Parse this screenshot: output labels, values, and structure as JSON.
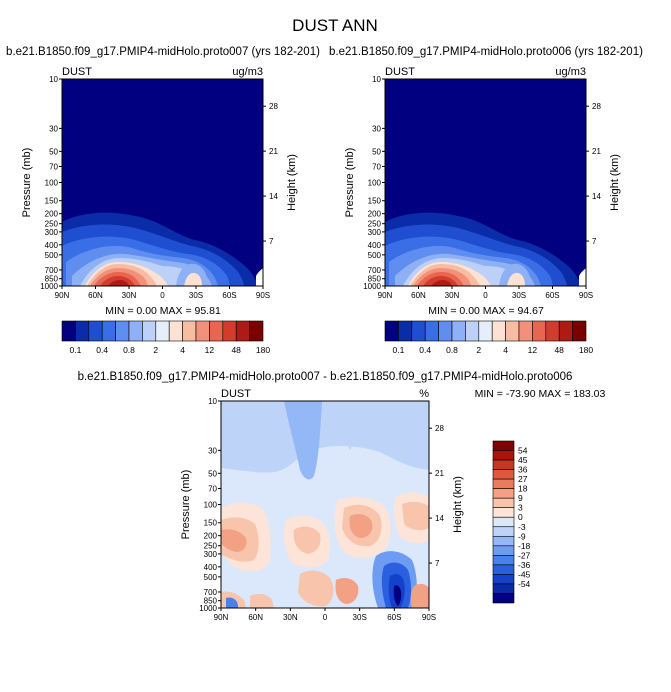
{
  "title": "DUST ANN",
  "colors": {
    "dust_scale": [
      "#000080",
      "#0a2ca8",
      "#1f4fd0",
      "#3a6ee6",
      "#5f8df0",
      "#8eb0f5",
      "#bcd0f8",
      "#e6eefc",
      "#fde2d4",
      "#f8bca2",
      "#f2917a",
      "#e8654f",
      "#d43b2c",
      "#b01a14",
      "#7a0000"
    ],
    "diff_scale": [
      "#000080",
      "#0a2aa5",
      "#1342c8",
      "#2a60e0",
      "#4a80ec",
      "#6d9cf2",
      "#94b8f5",
      "#bdd3f8",
      "#dbe8fb",
      "#fde4d8",
      "#f8c4ac",
      "#f3a184",
      "#ea7c5e",
      "#de583e",
      "#c93522",
      "#a81408",
      "#800000"
    ]
  },
  "chart_data": [
    {
      "type": "heatmap",
      "id": "panel_a",
      "subtitle": "b.e21.B1850.f09_g17.PMIP4-midHolo.proto007 (yrs 182-201)",
      "left_label": "DUST",
      "right_label": "ug/m3",
      "xlabel": "",
      "ylabel": "Pressure (mb)",
      "ylabel_right": "Height (km)",
      "x_ticks": [
        "90N",
        "60N",
        "30N",
        "0",
        "30S",
        "60S",
        "90S"
      ],
      "y_ticks": [
        10,
        30,
        50,
        70,
        100,
        150,
        200,
        250,
        300,
        400,
        500,
        700,
        850,
        1000
      ],
      "height_ticks": [
        28,
        21,
        14,
        7
      ],
      "stats": "MIN =   0.00  MAX =  95.81",
      "min": 0.0,
      "max": 95.81,
      "colorbar_labels": [
        "0.1",
        "0.4",
        "0.8",
        "2",
        "4",
        "12",
        "48",
        "180"
      ]
    },
    {
      "type": "heatmap",
      "id": "panel_b",
      "subtitle": "b.e21.B1850.f09_g17.PMIP4-midHolo.proto006 (yrs 182-201)",
      "left_label": "DUST",
      "right_label": "ug/m3",
      "xlabel": "",
      "ylabel": "Pressure (mb)",
      "ylabel_right": "Height (km)",
      "x_ticks": [
        "90N",
        "60N",
        "30N",
        "0",
        "30S",
        "60S",
        "90S"
      ],
      "y_ticks": [
        10,
        30,
        50,
        70,
        100,
        150,
        200,
        250,
        300,
        400,
        500,
        700,
        850,
        1000
      ],
      "height_ticks": [
        28,
        21,
        14,
        7
      ],
      "stats": "MIN =   0.00  MAX =  94.67",
      "min": 0.0,
      "max": 94.67,
      "colorbar_labels": [
        "0.1",
        "0.4",
        "0.8",
        "2",
        "4",
        "12",
        "48",
        "180"
      ]
    },
    {
      "type": "heatmap",
      "id": "panel_diff",
      "subtitle": "b.e21.B1850.f09_g17.PMIP4-midHolo.proto007 - b.e21.B1850.f09_g17.PMIP4-midHolo.proto006",
      "left_label": "DUST",
      "right_label": "%",
      "xlabel": "",
      "ylabel": "Pressure (mb)",
      "ylabel_right": "Height (km)",
      "x_ticks": [
        "90N",
        "60N",
        "30N",
        "0",
        "30S",
        "60S",
        "90S"
      ],
      "y_ticks": [
        10,
        30,
        50,
        70,
        100,
        150,
        200,
        250,
        300,
        400,
        500,
        700,
        850,
        1000
      ],
      "height_ticks": [
        28,
        21,
        14,
        7
      ],
      "stats": "MIN = -73.90  MAX = 183.03",
      "min": -73.9,
      "max": 183.03,
      "colorbar_labels": [
        "54",
        "45",
        "36",
        "27",
        "18",
        "9",
        "3",
        "0",
        "-3",
        "-9",
        "-18",
        "-27",
        "-36",
        "-45",
        "-54"
      ]
    }
  ]
}
